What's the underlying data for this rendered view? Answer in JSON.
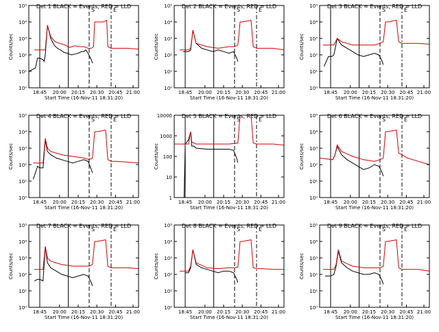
{
  "colors": {
    "events": "#000000",
    "lld": "#d40000",
    "axis": "#000000"
  },
  "common": {
    "xlabel": "Start Time (16-Nov-11 18:31:20)",
    "ylabel": "Counts/sec",
    "xticks": [
      "18:45",
      "20:00",
      "20:15",
      "20:30",
      "20:45",
      "21:00"
    ],
    "markers": {
      "s": "S",
      "e": "E"
    }
  },
  "chart_data": [
    {
      "type": "line",
      "title": "Det 1 BLACK = Events, RED = LLD",
      "ylog": true,
      "yticks": [
        "10⁰",
        "10¹",
        "10²",
        "10³",
        "10⁴",
        "10⁵"
      ],
      "series": [
        {
          "name": "Events",
          "x": [
            0,
            0.06,
            0.08,
            0.1,
            0.13,
            0.14,
            0.15,
            0.17,
            0.2,
            0.23,
            0.26,
            0.29,
            0.32,
            0.35,
            0.37,
            0.39,
            0.42,
            0.45,
            0.48,
            0.5,
            0.52,
            0.54,
            0.57,
            0.58
          ],
          "y": [
            1,
            1.2,
            1.8,
            1.8,
            1.7,
            1.6,
            2.0,
            3.8,
            3.0,
            2.6,
            2.4,
            2.3,
            2.15,
            2.1,
            2.05,
            2.0,
            2.05,
            2.1,
            2.2,
            2.2,
            2.3,
            2.1,
            1.7,
            1.5
          ]
        },
        {
          "name": "LLD",
          "x": [
            0.05,
            0.15,
            0.17,
            0.2,
            0.24,
            0.28,
            0.33,
            0.37,
            0.42,
            0.46,
            0.5,
            0.54,
            0.57,
            0.59,
            0.6,
            0.62,
            0.68,
            0.71,
            0.72,
            0.75,
            0.8,
            0.9,
            1.0
          ],
          "y": [
            2.3,
            2.3,
            3.8,
            3.1,
            2.8,
            2.7,
            2.6,
            2.45,
            2.55,
            2.5,
            2.5,
            2.4,
            2.4,
            2.5,
            4.0,
            4.0,
            4.0,
            4.1,
            2.5,
            2.4,
            2.4,
            2.4,
            2.35
          ]
        }
      ]
    },
    {
      "type": "line",
      "title": "Det 2 BLACK = Events, RED = LLD",
      "ylog": true,
      "yticks": [
        "10⁰",
        "10¹",
        "10²",
        "10³",
        "10⁴",
        "10⁵"
      ],
      "series": [
        {
          "name": "Events",
          "x": [
            0.08,
            0.13,
            0.15,
            0.17,
            0.2,
            0.25,
            0.3,
            0.35,
            0.4,
            0.45,
            0.5,
            0.54,
            0.57,
            0.58
          ],
          "y": [
            2.2,
            2.2,
            2.3,
            3.5,
            2.7,
            2.4,
            2.3,
            2.2,
            2.3,
            2.2,
            2.1,
            2.2,
            1.8,
            1.6
          ]
        },
        {
          "name": "LLD",
          "x": [
            0.05,
            0.13,
            0.15,
            0.17,
            0.2,
            0.3,
            0.4,
            0.5,
            0.55,
            0.58,
            0.6,
            0.62,
            0.7,
            0.72,
            0.75,
            0.8,
            0.9,
            1.0
          ],
          "y": [
            2.3,
            2.3,
            2.4,
            3.5,
            2.7,
            2.5,
            2.4,
            2.5,
            2.5,
            2.6,
            4.0,
            4.0,
            4.1,
            2.5,
            2.4,
            2.4,
            2.4,
            2.3
          ]
        }
      ]
    },
    {
      "type": "line",
      "title": "Det 3 BLACK = Events, RED = LLD",
      "ylog": true,
      "yticks": [
        "10⁰",
        "10¹",
        "10²",
        "10³",
        "10⁴",
        "10⁵"
      ],
      "series": [
        {
          "name": "Events",
          "x": [
            0.04,
            0.08,
            0.11,
            0.13,
            0.16,
            0.2,
            0.25,
            0.3,
            0.35,
            0.4,
            0.45,
            0.5,
            0.54,
            0.57,
            0.58
          ],
          "y": [
            1.3,
            1.9,
            1.9,
            2.0,
            3.0,
            2.6,
            2.4,
            2.2,
            2.0,
            1.9,
            2.0,
            2.1,
            2.0,
            1.6,
            1.4
          ]
        },
        {
          "name": "LLD",
          "x": [
            0.03,
            0.13,
            0.16,
            0.2,
            0.3,
            0.4,
            0.5,
            0.55,
            0.58,
            0.6,
            0.62,
            0.7,
            0.72,
            0.75,
            0.8,
            0.9,
            1.0
          ],
          "y": [
            2.6,
            2.6,
            3.0,
            2.8,
            2.6,
            2.6,
            2.6,
            2.7,
            2.8,
            4.0,
            4.0,
            4.1,
            2.8,
            2.7,
            2.7,
            2.7,
            2.65
          ]
        }
      ]
    },
    {
      "type": "line",
      "title": "Det 4 BLACK = Events, RED = LLD",
      "ylog": true,
      "yticks": [
        "10⁰",
        "10¹",
        "10²",
        "10³",
        "10⁴",
        "10⁵"
      ],
      "series": [
        {
          "name": "Events",
          "x": [
            0.04,
            0.08,
            0.1,
            0.13,
            0.15,
            0.17,
            0.2,
            0.25,
            0.3,
            0.35,
            0.4,
            0.45,
            0.5,
            0.54,
            0.57,
            0.58
          ],
          "y": [
            1.1,
            1.9,
            1.8,
            1.8,
            3.5,
            2.8,
            2.6,
            2.4,
            2.3,
            2.2,
            2.1,
            2.2,
            2.3,
            2.2,
            1.7,
            1.5
          ]
        },
        {
          "name": "LLD",
          "x": [
            0.04,
            0.13,
            0.15,
            0.17,
            0.2,
            0.3,
            0.4,
            0.5,
            0.55,
            0.58,
            0.6,
            0.62,
            0.7,
            0.72,
            0.75,
            0.8,
            0.9,
            1.0
          ],
          "y": [
            2.1,
            2.1,
            3.6,
            3.0,
            2.8,
            2.6,
            2.5,
            2.4,
            2.3,
            2.4,
            4.0,
            4.0,
            4.1,
            2.3,
            2.2,
            2.2,
            2.15,
            2.1
          ]
        }
      ]
    },
    {
      "type": "line",
      "title": "Det 5 BLACK = Events, RED = LLD",
      "ylog": true,
      "yticks": [
        "1",
        "10",
        "100",
        "1000",
        "10000"
      ],
      "series": [
        {
          "name": "Events",
          "x": [
            0.09,
            0.1,
            0.13,
            0.15,
            0.16,
            0.18,
            0.2,
            0.3,
            0.4,
            0.5,
            0.54,
            0.57,
            0.58
          ],
          "y": [
            0,
            2.6,
            2.8,
            3.2,
            2.5,
            2.5,
            2.4,
            2.35,
            2.35,
            2.35,
            2.3,
            1.9,
            1.7
          ]
        },
        {
          "name": "LLD",
          "x": [
            0.0,
            0.13,
            0.15,
            0.16,
            0.2,
            0.3,
            0.4,
            0.5,
            0.58,
            0.6,
            0.62,
            0.7,
            0.72,
            0.75,
            0.8,
            0.9,
            1.0
          ],
          "y": [
            2.6,
            2.6,
            3.2,
            2.7,
            2.6,
            2.6,
            2.6,
            2.6,
            2.65,
            4.0,
            4.0,
            4.1,
            2.65,
            2.6,
            2.6,
            2.6,
            2.55
          ]
        }
      ]
    },
    {
      "type": "line",
      "title": "Det 6 BLACK = Events, RED = LLD",
      "ylog": true,
      "yticks": [
        "10⁰",
        "10¹",
        "10²",
        "10³",
        "10⁴",
        "10⁵"
      ],
      "series": [
        {
          "name": "Events",
          "x": [
            0.12,
            0.14,
            0.16,
            0.2,
            0.25,
            0.3,
            0.35,
            0.4,
            0.45,
            0.5,
            0.54,
            0.57,
            0.58
          ],
          "y": [
            2.3,
            2.6,
            3.1,
            2.6,
            2.3,
            2.1,
            1.9,
            1.7,
            1.8,
            2.0,
            1.9,
            1.5,
            1.3
          ]
        },
        {
          "name": "LLD",
          "x": [
            0.0,
            0.12,
            0.14,
            0.16,
            0.2,
            0.3,
            0.4,
            0.5,
            0.55,
            0.58,
            0.6,
            0.62,
            0.7,
            0.72,
            0.75,
            0.8,
            0.9,
            1.0
          ],
          "y": [
            2.4,
            2.3,
            2.6,
            3.2,
            2.8,
            2.5,
            2.3,
            2.2,
            2.3,
            2.4,
            4.0,
            4.0,
            4.1,
            2.7,
            2.6,
            2.4,
            2.2,
            2.0
          ]
        }
      ]
    },
    {
      "type": "line",
      "title": "Det 7 BLACK = Events, RED = LLD",
      "ylog": true,
      "yticks": [
        "10⁰",
        "10¹",
        "10²",
        "10³",
        "10⁴",
        "10⁵"
      ],
      "series": [
        {
          "name": "Events",
          "x": [
            0.05,
            0.08,
            0.1,
            0.13,
            0.15,
            0.17,
            0.2,
            0.25,
            0.3,
            0.35,
            0.4,
            0.45,
            0.5,
            0.54,
            0.57,
            0.58
          ],
          "y": [
            1.6,
            1.7,
            1.7,
            1.6,
            3.7,
            2.7,
            2.4,
            2.2,
            2.0,
            1.9,
            1.8,
            1.9,
            2.0,
            1.9,
            1.5,
            1.3
          ]
        },
        {
          "name": "LLD",
          "x": [
            0.05,
            0.13,
            0.15,
            0.17,
            0.2,
            0.3,
            0.4,
            0.5,
            0.55,
            0.58,
            0.6,
            0.62,
            0.7,
            0.72,
            0.75,
            0.8,
            0.9,
            1.0
          ],
          "y": [
            2.3,
            2.3,
            3.7,
            3.0,
            2.8,
            2.6,
            2.5,
            2.5,
            2.5,
            2.6,
            4.0,
            4.0,
            4.1,
            2.5,
            2.4,
            2.4,
            2.4,
            2.35
          ]
        }
      ]
    },
    {
      "type": "line",
      "title": "Det 8 BLACK = Events, RED = LLD",
      "ylog": true,
      "yticks": [
        "10⁰",
        "10¹",
        "10²",
        "10³",
        "10⁴",
        "10⁵"
      ],
      "series": [
        {
          "name": "Events",
          "x": [
            0.1,
            0.13,
            0.15,
            0.17,
            0.2,
            0.25,
            0.3,
            0.35,
            0.4,
            0.45,
            0.5,
            0.54,
            0.57,
            0.58
          ],
          "y": [
            2.1,
            2.1,
            2.4,
            3.5,
            2.6,
            2.4,
            2.3,
            2.2,
            2.1,
            2.2,
            2.2,
            2.1,
            1.7,
            1.5
          ]
        },
        {
          "name": "LLD",
          "x": [
            0.05,
            0.13,
            0.15,
            0.17,
            0.2,
            0.3,
            0.4,
            0.5,
            0.55,
            0.58,
            0.6,
            0.62,
            0.7,
            0.72,
            0.75,
            0.8,
            0.9,
            1.0
          ],
          "y": [
            2.2,
            2.2,
            2.5,
            3.5,
            2.7,
            2.4,
            2.35,
            2.4,
            2.4,
            2.45,
            4.0,
            4.0,
            4.1,
            2.4,
            2.35,
            2.35,
            2.3,
            2.3
          ]
        }
      ]
    },
    {
      "type": "line",
      "title": "Det 9 BLACK = Events, RED = LLD",
      "ylog": true,
      "yticks": [
        "10⁰",
        "10¹",
        "10²",
        "10³",
        "10⁴",
        "10⁵"
      ],
      "series": [
        {
          "name": "Events",
          "x": [
            0.05,
            0.1,
            0.13,
            0.15,
            0.17,
            0.2,
            0.25,
            0.3,
            0.35,
            0.4,
            0.45,
            0.5,
            0.54,
            0.57,
            0.58
          ],
          "y": [
            1.9,
            1.9,
            2.0,
            2.5,
            3.4,
            2.7,
            2.4,
            2.2,
            2.1,
            2.0,
            2.0,
            2.1,
            2.0,
            1.6,
            1.4
          ]
        },
        {
          "name": "LLD",
          "x": [
            0.03,
            0.13,
            0.15,
            0.17,
            0.2,
            0.3,
            0.4,
            0.5,
            0.55,
            0.58,
            0.6,
            0.62,
            0.7,
            0.72,
            0.75,
            0.8,
            0.9,
            1.0
          ],
          "y": [
            2.3,
            2.3,
            2.6,
            3.5,
            2.8,
            2.5,
            2.4,
            2.4,
            2.4,
            2.5,
            4.0,
            4.0,
            4.1,
            2.4,
            2.3,
            2.3,
            2.3,
            2.2
          ]
        }
      ]
    }
  ]
}
